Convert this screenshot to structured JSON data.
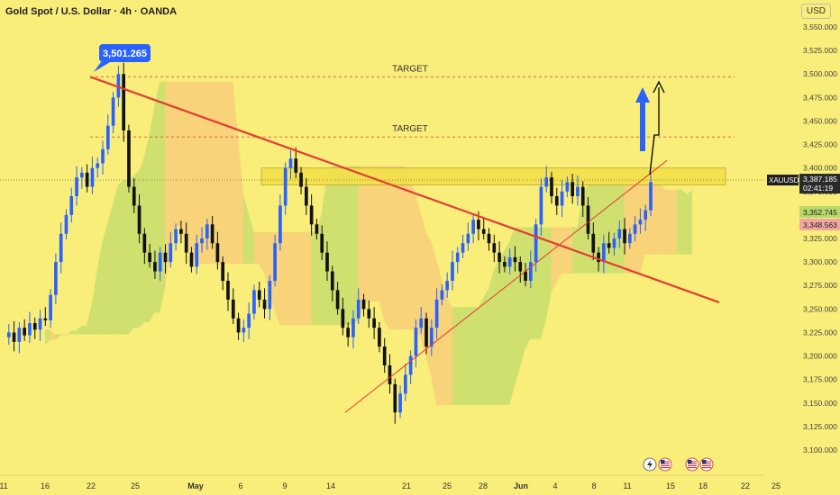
{
  "title": "Gold Spot / U.S. Dollar · 4h · OANDA",
  "currency_badge": "USD",
  "colors": {
    "background": "#f9ee79",
    "bull": "#2962ff",
    "bear": "#111111",
    "trendline": "#e53935",
    "cloud_green": "#b8d96a",
    "cloud_orange": "#f7c57a",
    "zone": "#f3e04a",
    "arrow_blue": "#2962ff",
    "price_tag": "#2a2a2a"
  },
  "chart_data": {
    "type": "candlestick",
    "symbol": "XAUUSD",
    "ylim": [
      3085,
      3560
    ],
    "y_ticks": [
      "3,550.000",
      "3,525.000",
      "3,500.000",
      "3,475.000",
      "3,450.000",
      "3,425.000",
      "3,400.000",
      "3,375.000",
      "3,350.000",
      "3,325.000",
      "3,300.000",
      "3,275.000",
      "3,250.000",
      "3,225.000",
      "3,200.000",
      "3,175.000",
      "3,150.000",
      "3,125.000",
      "3,100.000"
    ],
    "x_ticks": [
      "11",
      "16",
      "22",
      "25",
      "May",
      "6",
      "9",
      "14",
      "21",
      "25",
      "28",
      "Jun",
      "4",
      "8",
      "11",
      "15",
      "18",
      "22",
      "25"
    ],
    "price_path": [
      3220,
      3225,
      3215,
      3230,
      3222,
      3235,
      3228,
      3240,
      3238,
      3265,
      3300,
      3330,
      3350,
      3370,
      3390,
      3395,
      3380,
      3400,
      3405,
      3420,
      3445,
      3475,
      3500,
      3440,
      3380,
      3360,
      3330,
      3310,
      3300,
      3290,
      3310,
      3300,
      3320,
      3335,
      3330,
      3310,
      3295,
      3320,
      3325,
      3340,
      3320,
      3300,
      3280,
      3260,
      3240,
      3225,
      3230,
      3245,
      3270,
      3260,
      3250,
      3280,
      3320,
      3360,
      3400,
      3410,
      3395,
      3380,
      3360,
      3340,
      3330,
      3310,
      3290,
      3270,
      3250,
      3230,
      3220,
      3240,
      3260,
      3250,
      3240,
      3230,
      3210,
      3190,
      3170,
      3140,
      3160,
      3180,
      3200,
      3230,
      3240,
      3210,
      3230,
      3260,
      3270,
      3280,
      3300,
      3310,
      3320,
      3330,
      3345,
      3335,
      3330,
      3320,
      3310,
      3300,
      3295,
      3305,
      3300,
      3290,
      3280,
      3300,
      3340,
      3380,
      3390,
      3370,
      3360,
      3375,
      3385,
      3370,
      3380,
      3360,
      3330,
      3310,
      3300,
      3320,
      3315,
      3325,
      3335,
      3320,
      3330,
      3340,
      3345,
      3355,
      3385
    ],
    "annotations": [
      {
        "type": "callout",
        "label": "3,501.265",
        "value": 3501.265
      },
      {
        "type": "hline",
        "label": "TARGET",
        "value": 3497
      },
      {
        "type": "hline",
        "label": "TARGET",
        "value": 3433
      }
    ],
    "resistance_zone": [
      3382,
      3400
    ],
    "price_labels": [
      {
        "symbol": "XAUUSD",
        "price": "3,387.185",
        "countdown": "02:41:19",
        "value": 3387.185
      },
      {
        "price": "3,352.745",
        "value": 3352.745
      },
      {
        "price": "3,348.563",
        "value": 3348.563
      }
    ],
    "events": [
      {
        "icon": "lightning-icon"
      },
      {
        "icon": "us-flag-icon"
      },
      {
        "icon": "us-flag-icon"
      },
      {
        "icon": "us-flag-icon"
      }
    ],
    "grid": false,
    "legend": "none"
  }
}
